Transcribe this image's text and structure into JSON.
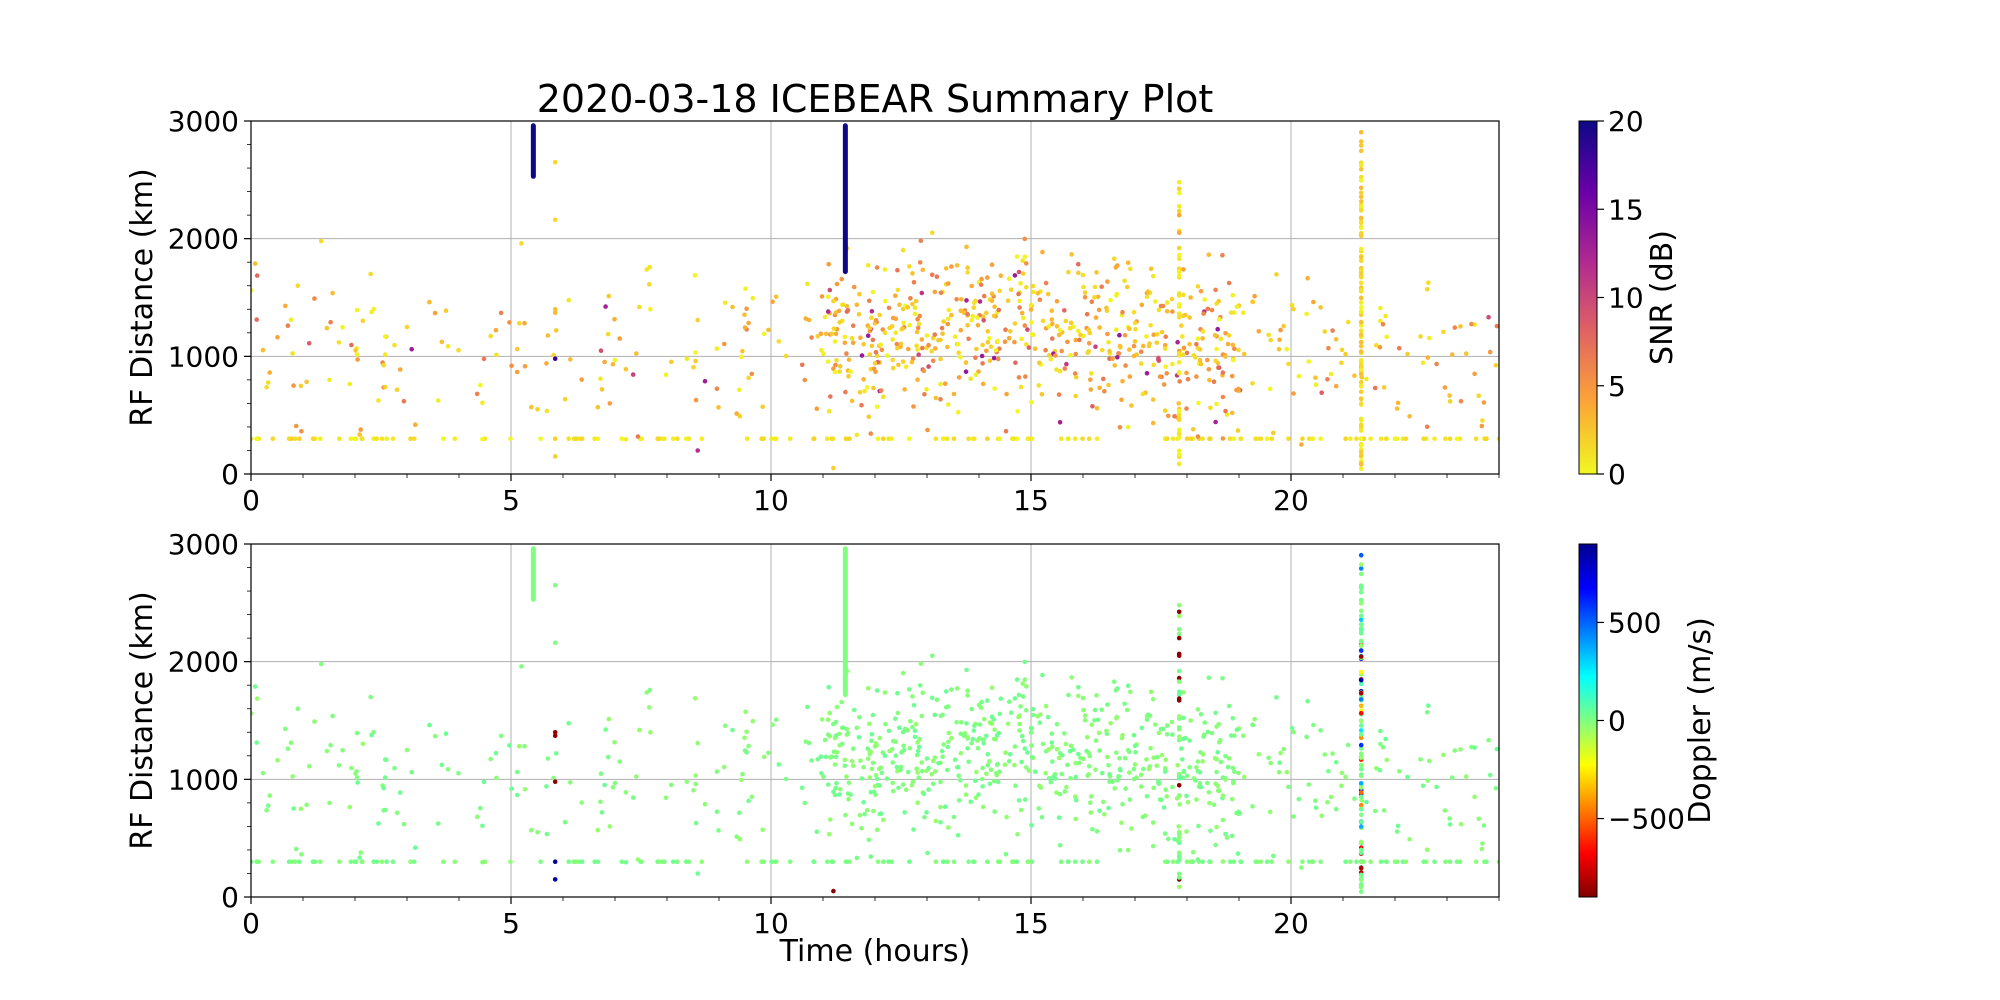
{
  "figure": {
    "title": "2020-03-18 ICEBEAR Summary Plot",
    "xlabel": "Time (hours)"
  },
  "chart_data": [
    {
      "type": "scatter",
      "name": "snr-panel",
      "title": "2020-03-18 ICEBEAR Summary Plot",
      "xlabel": "",
      "ylabel": "RF Distance (km)",
      "xlim": [
        0,
        24
      ],
      "ylim": [
        0,
        3000
      ],
      "xticks": [
        0,
        5,
        10,
        15,
        20
      ],
      "yticks": [
        0,
        1000,
        2000,
        3000
      ],
      "grid": true,
      "color_variable": "SNR (dB)",
      "colorbar": {
        "label": "SNR (dB)",
        "range": [
          0,
          20
        ],
        "ticks": [
          0,
          5,
          10,
          15,
          20
        ],
        "colormap": "plasma_r",
        "colors": [
          "#f0f921",
          "#fca636",
          "#e16462",
          "#b12a90",
          "#6a00a8",
          "#0d0887"
        ]
      },
      "vertical_streaks": [
        {
          "x": 5.43,
          "y0": 2530,
          "y1": 2960,
          "snr": 20
        },
        {
          "x": 11.43,
          "y0": 1720,
          "y1": 2960,
          "snr": 20
        }
      ],
      "points": []
    },
    {
      "type": "scatter",
      "name": "doppler-panel",
      "title": "",
      "xlabel": "Time (hours)",
      "ylabel": "RF Distance (km)",
      "xlim": [
        0,
        24
      ],
      "ylim": [
        0,
        3000
      ],
      "xticks": [
        0,
        5,
        10,
        15,
        20
      ],
      "yticks": [
        0,
        1000,
        2000,
        3000
      ],
      "grid": true,
      "color_variable": "Doppler (m/s)",
      "colorbar": {
        "label": "Doppler (m/s)",
        "range": [
          -900,
          900
        ],
        "ticks": [
          -500,
          0,
          500
        ],
        "tick_labels": [
          "−500",
          "0",
          "500"
        ],
        "colormap": "jet_r",
        "colors": [
          "#800000",
          "#ff0000",
          "#ff8000",
          "#ffff00",
          "#80ff80",
          "#00ffff",
          "#0080ff",
          "#0000ff",
          "#00008f"
        ]
      },
      "vertical_streaks": [
        {
          "x": 5.43,
          "y0": 2530,
          "y1": 2960,
          "doppler": 0
        },
        {
          "x": 11.43,
          "y0": 1720,
          "y1": 2960,
          "doppler": 0
        }
      ],
      "points": []
    }
  ]
}
